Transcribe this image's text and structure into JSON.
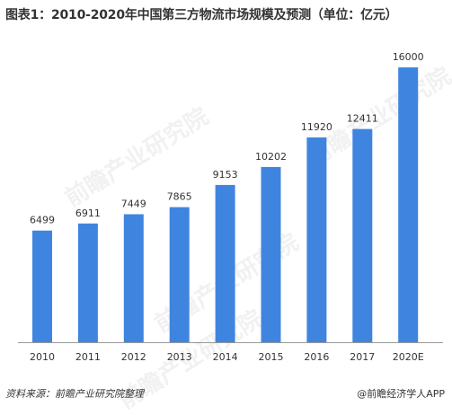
{
  "title": "图表1：2010-2020年中国第三方物流市场规模及预测（单位：亿元）",
  "source": "资料来源：前瞻产业研究院整理",
  "brand": "@前瞻经济学人APP",
  "watermark": "前瞻产业研究院",
  "colors": {
    "bar": "#3f85e0",
    "axis": "#999999",
    "text": "#333333"
  },
  "chart_data": {
    "type": "bar",
    "categories": [
      "2010",
      "2011",
      "2012",
      "2013",
      "2014",
      "2015",
      "2016",
      "2017",
      "2020E"
    ],
    "values": [
      6499,
      6911,
      7449,
      7865,
      9153,
      10202,
      11920,
      12411,
      16000
    ],
    "data_labels": [
      "6499",
      "6911",
      "7449",
      "7865",
      "9153",
      "10202",
      "11920",
      "12411",
      "16000"
    ],
    "ylim": [
      0,
      16000
    ],
    "grid": false,
    "legend": "none"
  }
}
